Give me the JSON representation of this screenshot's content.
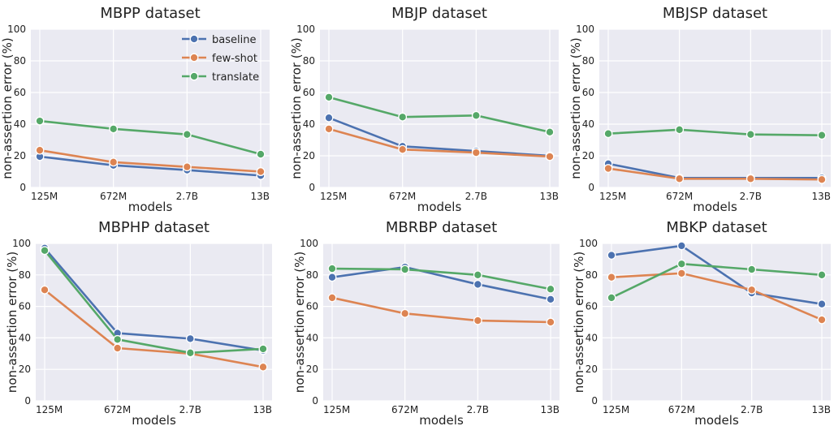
{
  "chart_data": [
    {
      "type": "line",
      "title": "MBPP dataset",
      "xlabel": "models",
      "ylabel": "non-assertion error (%)",
      "categories": [
        "125M",
        "672M",
        "2.7B",
        "13B"
      ],
      "ylim": [
        0,
        100
      ],
      "yticks": [
        0,
        20,
        40,
        60,
        80,
        100
      ],
      "grid": true,
      "legend": "top-right",
      "series": [
        {
          "name": "baseline",
          "color": "#4c72b0",
          "values": [
            19.5,
            14,
            11,
            7.5
          ]
        },
        {
          "name": "few-shot",
          "color": "#dd8452",
          "values": [
            23.5,
            16,
            13,
            10
          ]
        },
        {
          "name": "translate",
          "color": "#55a868",
          "values": [
            42,
            37,
            33.5,
            21
          ]
        }
      ]
    },
    {
      "type": "line",
      "title": "MBJP dataset",
      "xlabel": "models",
      "ylabel": "non-assertion error (%)",
      "categories": [
        "125M",
        "672M",
        "2.7B",
        "13B"
      ],
      "ylim": [
        0,
        100
      ],
      "yticks": [
        0,
        20,
        40,
        60,
        80,
        100
      ],
      "grid": true,
      "series": [
        {
          "name": "baseline",
          "color": "#4c72b0",
          "values": [
            44,
            26,
            23,
            20
          ]
        },
        {
          "name": "few-shot",
          "color": "#dd8452",
          "values": [
            37,
            24,
            22,
            19.5
          ]
        },
        {
          "name": "translate",
          "color": "#55a868",
          "values": [
            57,
            44.5,
            45.5,
            35
          ]
        }
      ]
    },
    {
      "type": "line",
      "title": "MBJSP dataset",
      "xlabel": "models",
      "ylabel": "non-assertion error (%)",
      "categories": [
        "125M",
        "672M",
        "2.7B",
        "13B"
      ],
      "ylim": [
        0,
        100
      ],
      "yticks": [
        0,
        20,
        40,
        60,
        80,
        100
      ],
      "grid": true,
      "series": [
        {
          "name": "baseline",
          "color": "#4c72b0",
          "values": [
            15,
            6,
            6,
            6
          ]
        },
        {
          "name": "few-shot",
          "color": "#dd8452",
          "values": [
            12,
            5.5,
            5.5,
            5
          ]
        },
        {
          "name": "translate",
          "color": "#55a868",
          "values": [
            34,
            36.5,
            33.5,
            33
          ]
        }
      ]
    },
    {
      "type": "line",
      "title": "MBPHP dataset",
      "xlabel": "models",
      "ylabel": "non-assertion error (%)",
      "categories": [
        "125M",
        "672M",
        "2.7B",
        "13B"
      ],
      "ylim": [
        0,
        100
      ],
      "yticks": [
        0,
        20,
        40,
        60,
        80,
        100
      ],
      "grid": true,
      "series": [
        {
          "name": "baseline",
          "color": "#4c72b0",
          "values": [
            97,
            43,
            39.5,
            32
          ]
        },
        {
          "name": "few-shot",
          "color": "#dd8452",
          "values": [
            70.5,
            33.5,
            30,
            21.5
          ]
        },
        {
          "name": "translate",
          "color": "#55a868",
          "values": [
            95.5,
            39,
            30.5,
            33
          ]
        }
      ]
    },
    {
      "type": "line",
      "title": "MBRBP dataset",
      "xlabel": "models",
      "ylabel": "non-assertion error (%)",
      "categories": [
        "125M",
        "672M",
        "2.7B",
        "13B"
      ],
      "ylim": [
        0,
        100
      ],
      "yticks": [
        0,
        20,
        40,
        60,
        80,
        100
      ],
      "grid": true,
      "series": [
        {
          "name": "baseline",
          "color": "#4c72b0",
          "values": [
            78.5,
            85,
            74,
            64.5
          ]
        },
        {
          "name": "few-shot",
          "color": "#dd8452",
          "values": [
            65.5,
            55.5,
            51,
            50
          ]
        },
        {
          "name": "translate",
          "color": "#55a868",
          "values": [
            84,
            83.5,
            80,
            71
          ]
        }
      ]
    },
    {
      "type": "line",
      "title": "MBKP dataset",
      "xlabel": "models",
      "ylabel": "non-assertion error (%)",
      "categories": [
        "125M",
        "672M",
        "2.7B",
        "13B"
      ],
      "ylim": [
        0,
        100
      ],
      "yticks": [
        0,
        20,
        40,
        60,
        80,
        100
      ],
      "grid": true,
      "series": [
        {
          "name": "baseline",
          "color": "#4c72b0",
          "values": [
            92.5,
            98.5,
            68.5,
            61.5
          ]
        },
        {
          "name": "few-shot",
          "color": "#dd8452",
          "values": [
            78.5,
            81,
            70.5,
            51.5
          ]
        },
        {
          "name": "translate",
          "color": "#55a868",
          "values": [
            65.5,
            87,
            83.5,
            80
          ]
        }
      ]
    }
  ]
}
